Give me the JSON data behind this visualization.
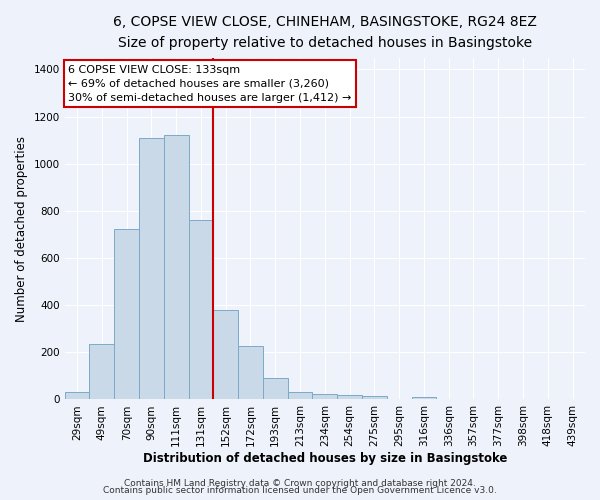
{
  "title_line1": "6, COPSE VIEW CLOSE, CHINEHAM, BASINGSTOKE, RG24 8EZ",
  "title_line2": "Size of property relative to detached houses in Basingstoke",
  "xlabel": "Distribution of detached houses by size in Basingstoke",
  "ylabel": "Number of detached properties",
  "footer_line1": "Contains HM Land Registry data © Crown copyright and database right 2024.",
  "footer_line2": "Contains public sector information licensed under the Open Government Licence v3.0.",
  "annotation_line1": "6 COPSE VIEW CLOSE: 133sqm",
  "annotation_line2": "← 69% of detached houses are smaller (3,260)",
  "annotation_line3": "30% of semi-detached houses are larger (1,412) →",
  "bar_labels": [
    "29sqm",
    "49sqm",
    "70sqm",
    "90sqm",
    "111sqm",
    "131sqm",
    "152sqm",
    "172sqm",
    "193sqm",
    "213sqm",
    "234sqm",
    "254sqm",
    "275sqm",
    "295sqm",
    "316sqm",
    "336sqm",
    "357sqm",
    "377sqm",
    "398sqm",
    "418sqm",
    "439sqm"
  ],
  "bar_values": [
    30,
    235,
    725,
    1110,
    1120,
    760,
    380,
    225,
    90,
    30,
    25,
    20,
    15,
    0,
    10,
    0,
    0,
    0,
    0,
    0,
    0
  ],
  "bar_color": "#c9d9e8",
  "bar_edge_color": "#7aaac8",
  "vline_x": 5.5,
  "vline_color": "#cc0000",
  "ylim": [
    0,
    1450
  ],
  "yticks": [
    0,
    200,
    400,
    600,
    800,
    1000,
    1200,
    1400
  ],
  "background_color": "#eef2fa",
  "grid_color": "#ffffff",
  "annotation_box_color": "#cc0000",
  "annotation_box_fill": "#ffffff",
  "title_fontsize": 10,
  "subtitle_fontsize": 9,
  "axis_label_fontsize": 8.5,
  "tick_fontsize": 7.5,
  "annotation_fontsize": 8,
  "footer_fontsize": 6.5
}
